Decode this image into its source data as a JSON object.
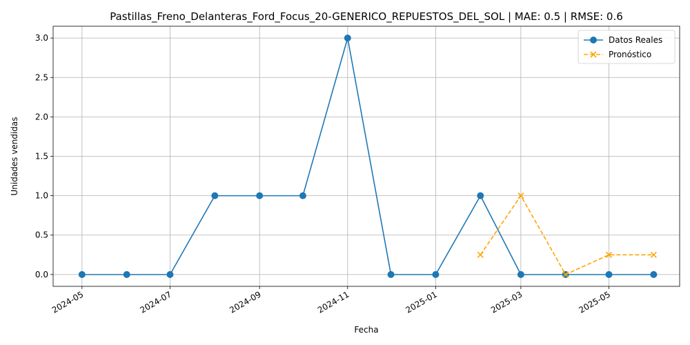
{
  "chart_data": {
    "type": "line",
    "title": "Pastillas_Freno_Delanteras_Ford_Focus_20-GENERICO_REPUESTOS_DEL_SOL | MAE: 0.5 | RMSE: 0.6",
    "xlabel": "Fecha",
    "ylabel": "Unidades vendidas",
    "xlim": [
      "2024-04-11",
      "2025-06-19"
    ],
    "ylim": [
      -0.15,
      3.15
    ],
    "x_ticks": [
      "2024-05",
      "2024-07",
      "2024-09",
      "2024-11",
      "2025-01",
      "2025-03",
      "2025-05"
    ],
    "y_ticks": [
      "0.0",
      "0.5",
      "1.0",
      "1.5",
      "2.0",
      "2.5",
      "3.0"
    ],
    "grid": true,
    "legend_position": "top-right",
    "series": [
      {
        "name": "Datos Reales",
        "color": "#1f77b4",
        "style": "solid",
        "marker": "circle",
        "x": [
          "2024-05-01",
          "2024-06-01",
          "2024-07-01",
          "2024-08-01",
          "2024-09-01",
          "2024-10-01",
          "2024-11-01",
          "2024-12-01",
          "2025-01-01",
          "2025-02-01",
          "2025-03-01",
          "2025-04-01",
          "2025-05-01",
          "2025-06-01"
        ],
        "values": [
          0,
          0,
          0,
          1,
          1,
          1,
          3,
          0,
          0,
          1,
          0,
          0,
          0,
          0
        ]
      },
      {
        "name": "Pronóstico",
        "color": "#ffa500",
        "style": "dashed",
        "marker": "x",
        "x": [
          "2025-02-01",
          "2025-03-01",
          "2025-04-01",
          "2025-05-01",
          "2025-06-01"
        ],
        "values": [
          0.25,
          1,
          0,
          0.25,
          0.25
        ]
      }
    ]
  }
}
